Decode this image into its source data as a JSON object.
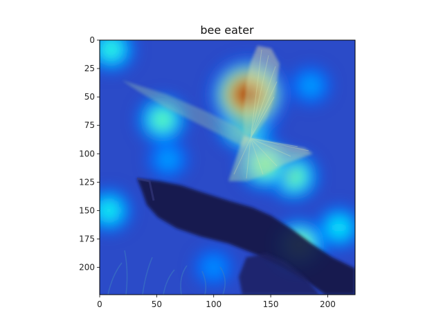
{
  "chart_data": {
    "type": "heatmap",
    "title": "bee eater",
    "xlabel": "",
    "ylabel": "",
    "xlim": [
      0,
      224
    ],
    "ylim": [
      224,
      0
    ],
    "x_ticks": [
      0,
      50,
      100,
      150,
      200
    ],
    "y_ticks": [
      0,
      25,
      50,
      75,
      100,
      125,
      150,
      175,
      200
    ],
    "x_tick_labels": [
      "0",
      "50",
      "100",
      "150",
      "200"
    ],
    "y_tick_labels": [
      "0",
      "25",
      "50",
      "75",
      "100",
      "125",
      "150",
      "175",
      "200"
    ],
    "colormap": "jet",
    "grid": false,
    "legend": "none",
    "overlay": "class activation heatmap over photo of a bee-eater bird perched on a branch",
    "hotspots": [
      {
        "x": 130,
        "y": 48,
        "intensity": 1.0
      },
      {
        "x": 128,
        "y": 72,
        "intensity": 0.68
      },
      {
        "x": 145,
        "y": 110,
        "intensity": 0.55
      },
      {
        "x": 55,
        "y": 70,
        "intensity": 0.5
      },
      {
        "x": 170,
        "y": 120,
        "intensity": 0.52
      },
      {
        "x": 175,
        "y": 180,
        "intensity": 0.55
      },
      {
        "x": 10,
        "y": 8,
        "intensity": 0.45
      },
      {
        "x": 8,
        "y": 150,
        "intensity": 0.42
      },
      {
        "x": 210,
        "y": 165,
        "intensity": 0.4
      },
      {
        "x": 185,
        "y": 40,
        "intensity": 0.3
      },
      {
        "x": 60,
        "y": 105,
        "intensity": 0.3
      },
      {
        "x": 100,
        "y": 200,
        "intensity": 0.28
      }
    ]
  }
}
